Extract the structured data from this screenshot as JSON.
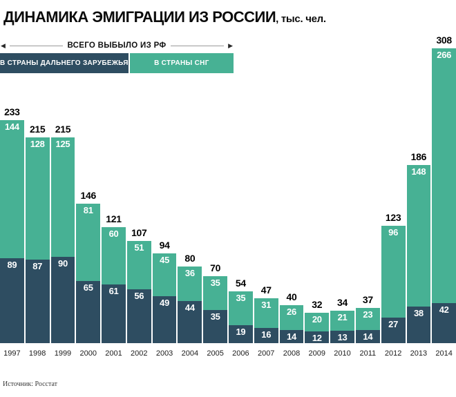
{
  "title": {
    "main": "ДИНАМИКА ЭМИГРАЦИИ ИЗ РОССИИ",
    "suffix": ", тыс. чел."
  },
  "legend": {
    "total_label": "ВСЕГО ВЫБЫЛО ИЗ РФ",
    "series": [
      {
        "label": "В СТРАНЫ ДАЛЬНЕГО ЗАРУБЕЖЬЯ",
        "color": "#2e4d61"
      },
      {
        "label": "В СТРАНЫ СНГ",
        "color": "#47b194"
      }
    ]
  },
  "source": "Источник: Росстат",
  "chart_data": {
    "type": "bar",
    "stacked": true,
    "title": "ДИНАМИКА ЭМИГРАЦИИ ИЗ РОССИИ, тыс. чел.",
    "unit": "тыс. чел.",
    "categories": [
      "1997",
      "1998",
      "1999",
      "2000",
      "2001",
      "2002",
      "2003",
      "2004",
      "2005",
      "2006",
      "2007",
      "2008",
      "2009",
      "2010",
      "2011",
      "2012",
      "2013",
      "2014"
    ],
    "series": [
      {
        "name": "В СТРАНЫ ДАЛЬНЕГО ЗАРУБЕЖЬЯ",
        "color": "#2e4d61",
        "position": "bottom",
        "values": [
          89,
          87,
          90,
          65,
          61,
          56,
          49,
          44,
          35,
          19,
          16,
          14,
          12,
          13,
          14,
          27,
          38,
          42
        ]
      },
      {
        "name": "В СТРАНЫ СНГ",
        "color": "#47b194",
        "position": "top",
        "values": [
          144,
          128,
          125,
          81,
          60,
          51,
          45,
          36,
          35,
          35,
          31,
          26,
          20,
          21,
          23,
          96,
          148,
          266
        ]
      }
    ],
    "totals": [
      233,
      215,
      215,
      146,
      121,
      107,
      94,
      80,
      70,
      54,
      47,
      40,
      32,
      34,
      37,
      123,
      186,
      308
    ],
    "ylim": [
      0,
      308
    ],
    "grid": false,
    "legend_position": "top-left"
  }
}
